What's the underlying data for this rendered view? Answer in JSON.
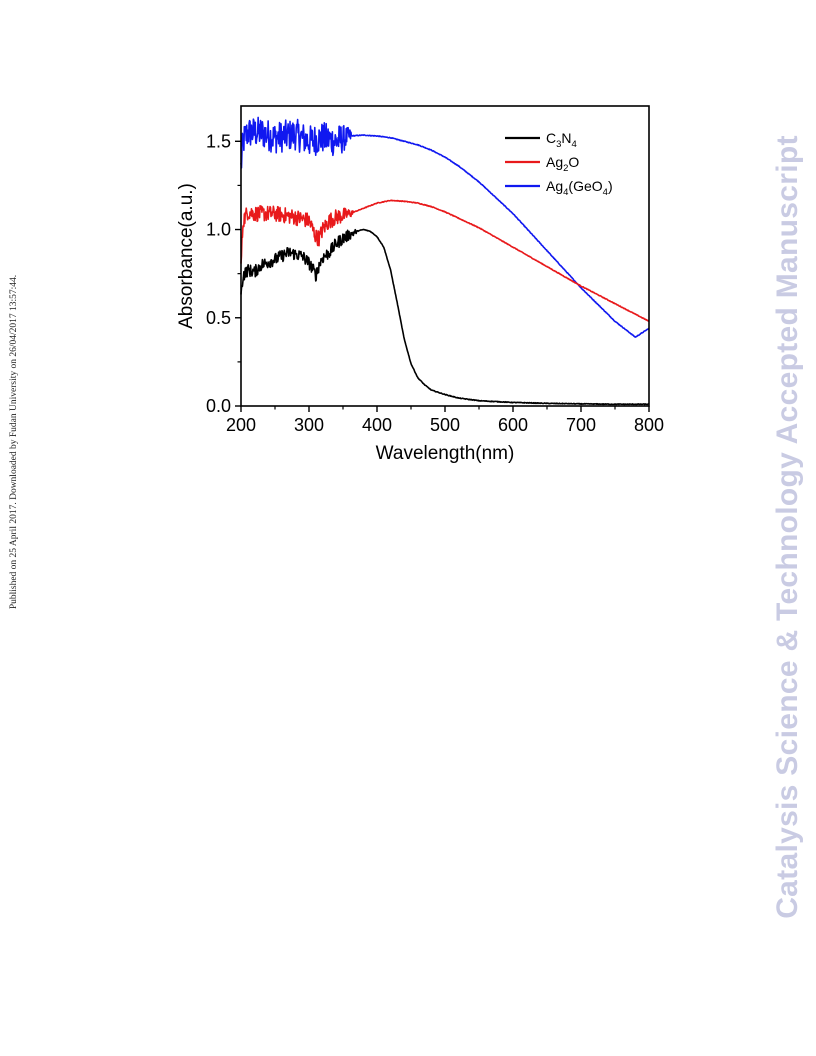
{
  "page": {
    "side_note": "Published on 25 April 2017. Downloaded by Fudan University on 26/04/2017 13:57:44.",
    "watermark": "Catalysis Science & Technology Accepted Manuscript"
  },
  "chart_data": {
    "type": "line",
    "xlabel": "Wavelength(nm)",
    "ylabel": "Absorbance(a.u.)",
    "xlim": [
      200,
      800
    ],
    "ylim": [
      0.0,
      1.7
    ],
    "xticks": [
      200,
      300,
      400,
      500,
      600,
      700,
      800
    ],
    "yticks": [
      0.0,
      0.5,
      1.0,
      1.5
    ],
    "ytick_labels": [
      "0.0",
      "0.5",
      "1.0",
      "1.5"
    ],
    "grid": false,
    "legend_position": "top-right",
    "series": [
      {
        "name": "C3N4",
        "legend": {
          "base": "C",
          "sub1": "3",
          "mid": "N",
          "sub2": "4",
          "tail": ""
        },
        "color": "#000000",
        "noise": {
          "x_from": 200,
          "x_to": 370,
          "amplitude": 0.035
        },
        "x": [
          200,
          203,
          210,
          220,
          230,
          250,
          270,
          290,
          300,
          305,
          310,
          315,
          320,
          330,
          340,
          350,
          360,
          370,
          380,
          390,
          400,
          410,
          420,
          430,
          440,
          450,
          460,
          470,
          480,
          500,
          520,
          550,
          600,
          650,
          700,
          750,
          800
        ],
        "y": [
          0.62,
          0.74,
          0.77,
          0.76,
          0.8,
          0.83,
          0.87,
          0.85,
          0.81,
          0.78,
          0.74,
          0.8,
          0.84,
          0.87,
          0.92,
          0.95,
          0.97,
          0.99,
          1.0,
          0.99,
          0.96,
          0.9,
          0.77,
          0.58,
          0.38,
          0.24,
          0.16,
          0.12,
          0.09,
          0.065,
          0.045,
          0.03,
          0.02,
          0.015,
          0.012,
          0.01,
          0.01
        ]
      },
      {
        "name": "Ag2O",
        "legend": {
          "base": "Ag",
          "sub1": "2",
          "mid": "O",
          "sub2": "",
          "tail": ""
        },
        "color": "#e8191b",
        "noise": {
          "x_from": 200,
          "x_to": 365,
          "amplitude": 0.045
        },
        "x": [
          200,
          203,
          210,
          220,
          250,
          280,
          300,
          310,
          315,
          320,
          330,
          340,
          350,
          360,
          380,
          400,
          420,
          440,
          460,
          480,
          500,
          550,
          600,
          650,
          700,
          750,
          800
        ],
        "y": [
          0.8,
          1.05,
          1.1,
          1.09,
          1.09,
          1.07,
          1.05,
          0.96,
          0.95,
          1.0,
          1.05,
          1.07,
          1.08,
          1.09,
          1.12,
          1.15,
          1.165,
          1.16,
          1.15,
          1.13,
          1.1,
          1.01,
          0.9,
          0.79,
          0.68,
          0.58,
          0.48
        ]
      },
      {
        "name": "Ag4(GeO4)",
        "legend": {
          "base": "Ag",
          "sub1": "4",
          "mid": "(GeO",
          "sub2": "4",
          "tail": ")"
        },
        "color": "#1018f0",
        "noise": {
          "x_from": 200,
          "x_to": 362,
          "amplitude": 0.09
        },
        "x": [
          200,
          203,
          210,
          230,
          250,
          280,
          300,
          320,
          340,
          360,
          380,
          400,
          420,
          440,
          460,
          480,
          500,
          520,
          550,
          600,
          650,
          700,
          750,
          780,
          800
        ],
        "y": [
          1.35,
          1.5,
          1.55,
          1.55,
          1.52,
          1.54,
          1.5,
          1.52,
          1.5,
          1.53,
          1.535,
          1.53,
          1.52,
          1.5,
          1.48,
          1.45,
          1.41,
          1.36,
          1.27,
          1.09,
          0.88,
          0.67,
          0.48,
          0.39,
          0.44
        ]
      }
    ]
  }
}
